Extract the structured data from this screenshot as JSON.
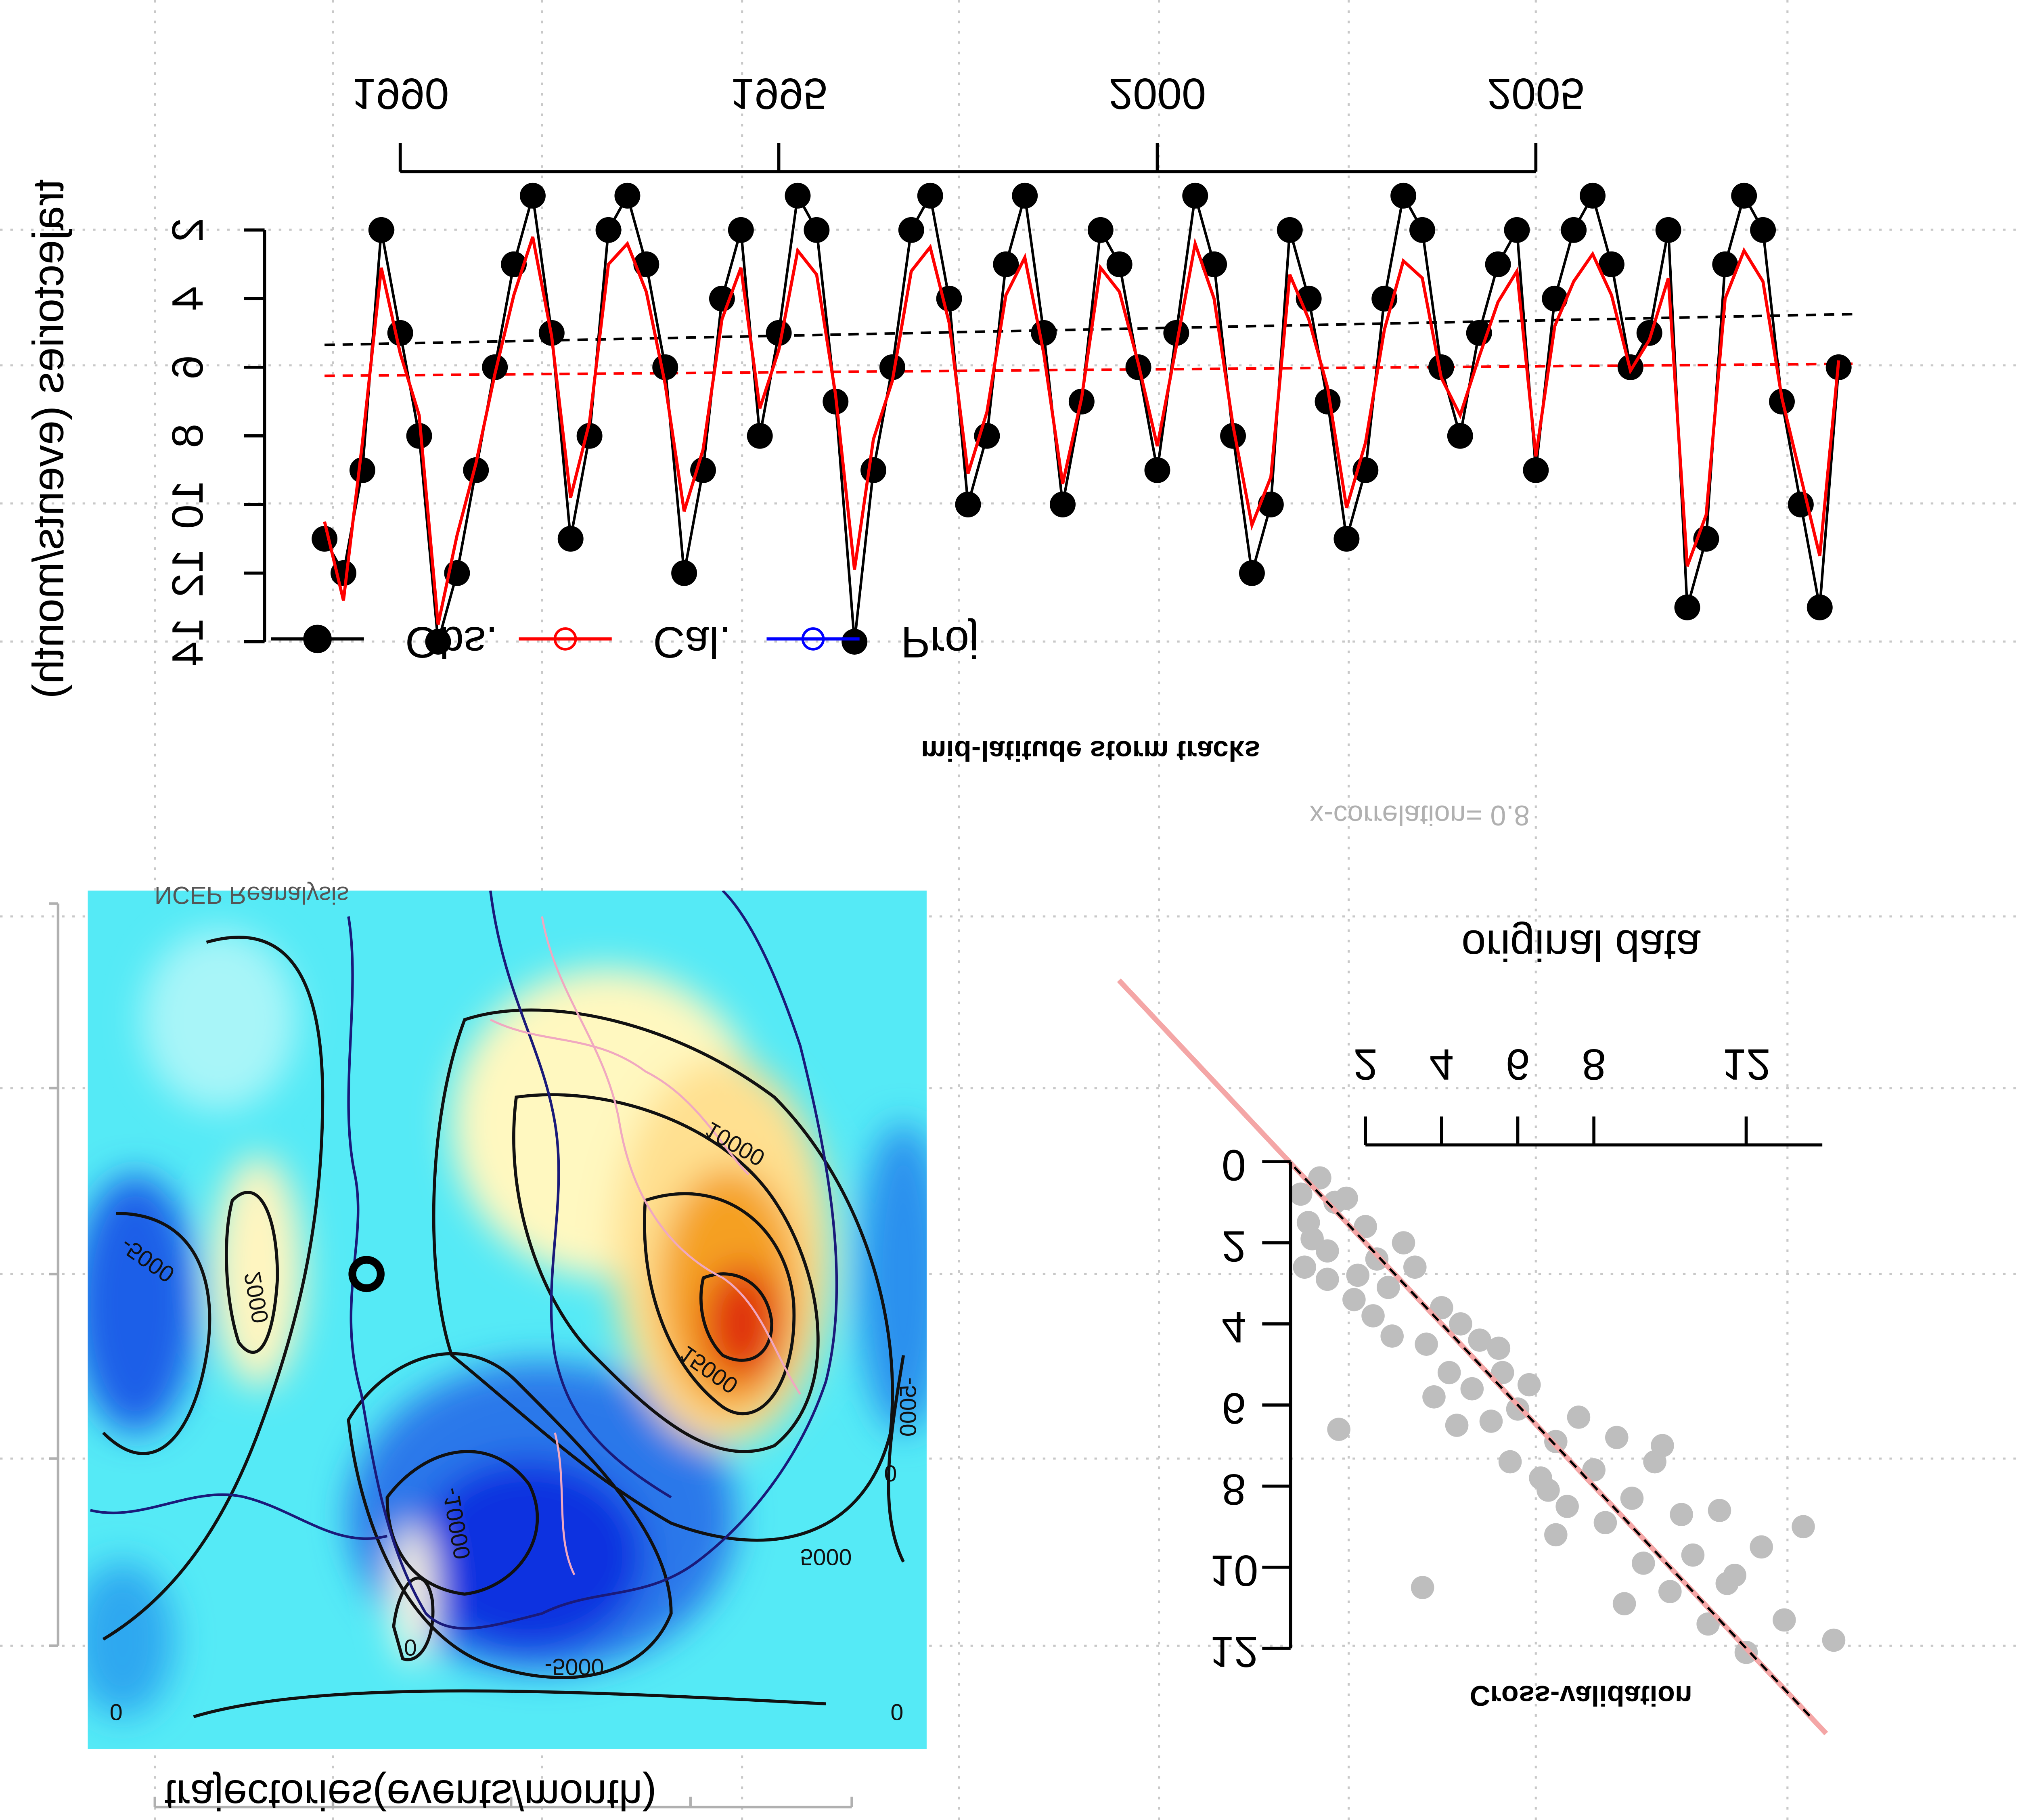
{
  "chart_data": [
    {
      "type": "line",
      "title": "mid-latitude storm tracks",
      "subtitle": "x-correlation= 0.8",
      "y_label": "trajectories (events/month)",
      "x": [
        1989.0,
        1989.25,
        1989.5,
        1989.75,
        1990.0,
        1990.25,
        1990.5,
        1990.75,
        1991.0,
        1991.25,
        1991.5,
        1991.75,
        1992.0,
        1992.25,
        1992.5,
        1992.75,
        1993.0,
        1993.25,
        1993.5,
        1993.75,
        1994.0,
        1994.25,
        1994.5,
        1994.75,
        1995.0,
        1995.25,
        1995.5,
        1995.75,
        1996.0,
        1996.25,
        1996.5,
        1996.75,
        1997.0,
        1997.25,
        1997.5,
        1997.75,
        1998.0,
        1998.25,
        1998.5,
        1998.75,
        1999.0,
        1999.25,
        1999.5,
        1999.75,
        2000.0,
        2000.25,
        2000.5,
        2000.75,
        2001.0,
        2001.25,
        2001.5,
        2001.75,
        2002.0,
        2002.25,
        2002.5,
        2002.75,
        2003.0,
        2003.25,
        2003.5,
        2003.75,
        2004.0,
        2004.25,
        2004.5,
        2004.75,
        2005.0,
        2005.25,
        2005.5,
        2005.75,
        2006.0,
        2006.25,
        2006.5,
        2006.75,
        2007.0,
        2007.25,
        2007.5,
        2007.75,
        2008.0,
        2008.25,
        2008.5,
        2008.75,
        2009.0
      ],
      "series": [
        {
          "name": "Obs.",
          "color": "#000000",
          "values": [
            11,
            12,
            9,
            2,
            5,
            8,
            14,
            12,
            9,
            6,
            3,
            1,
            5,
            11,
            8,
            2,
            1,
            3,
            6,
            12,
            9,
            4,
            2,
            8,
            5,
            1,
            2,
            7,
            14,
            9,
            6,
            2,
            1,
            4,
            10,
            8,
            3,
            1,
            5,
            10,
            7,
            2,
            3,
            6,
            9,
            5,
            1,
            3,
            8,
            12,
            10,
            2,
            4,
            7,
            11,
            9,
            4,
            1,
            2,
            6,
            8,
            5,
            3,
            2,
            9,
            4,
            2,
            1,
            3,
            6,
            5,
            2,
            13,
            11,
            3,
            1,
            2,
            7,
            10,
            13,
            6
          ]
        },
        {
          "name": "Cal.",
          "color": "#ff0000",
          "values": [
            10.5,
            12.8,
            8.2,
            3.1,
            5.6,
            7.4,
            13.5,
            10.9,
            8.8,
            6.2,
            3.9,
            2.2,
            5.1,
            9.8,
            7.6,
            3.0,
            2.4,
            3.8,
            6.5,
            10.2,
            8.4,
            4.6,
            3.1,
            7.2,
            5.5,
            2.6,
            3.3,
            6.8,
            11.9,
            8.1,
            6.4,
            3.2,
            2.5,
            4.7,
            9.1,
            7.3,
            3.9,
            2.8,
            5.6,
            9.4,
            6.9,
            3.1,
            3.8,
            5.9,
            8.3,
            5.4,
            2.4,
            4.0,
            7.7,
            10.6,
            9.2,
            3.3,
            4.6,
            6.6,
            10.1,
            8.2,
            4.9,
            2.9,
            3.4,
            6.3,
            7.4,
            5.7,
            4.1,
            3.2,
            8.6,
            4.8,
            3.5,
            2.7,
            3.9,
            6.1,
            5.2,
            3.4,
            11.8,
            10.3,
            4.0,
            2.6,
            3.5,
            6.9,
            9.2,
            11.5,
            5.8
          ]
        }
      ],
      "legend_extra": [
        {
          "name": "Proj",
          "color": "#0000ff"
        }
      ],
      "trend_x": [
        1989.0,
        2009.2
      ],
      "trends": [
        {
          "color": "#000000",
          "values": [
            5.35,
            4.45
          ]
        },
        {
          "color": "#ff0000",
          "values": [
            6.25,
            5.9
          ]
        }
      ],
      "xlim": [
        1988.6,
        2009.5
      ],
      "xticks": [
        1990,
        1995,
        2000,
        2005
      ],
      "ylim": [
        0.3,
        15.8
      ],
      "yticks": [
        2,
        4,
        6,
        8,
        10,
        12,
        14
      ],
      "legend": "topleft"
    },
    {
      "type": "scatter",
      "title": "Cross-validation",
      "x_label": "original data",
      "color": "#bebebe",
      "x": [
        0.3,
        0.5,
        0.8,
        1.0,
        1.2,
        0.4,
        0.6,
        1.5,
        1.8,
        2.0,
        2.3,
        2.6,
        3.0,
        2.2,
        1.7,
        3.3,
        3.6,
        4.0,
        4.2,
        4.5,
        3.8,
        4.8,
        5.0,
        5.3,
        5.6,
        6.0,
        5.8,
        6.3,
        6.6,
        7.0,
        7.3,
        7.6,
        7.0,
        8.0,
        8.3,
        8.6,
        9.0,
        9.3,
        9.6,
        10.0,
        10.3,
        10.6,
        11.0,
        11.3,
        11.7,
        12.0,
        12.4,
        13.0,
        14.3,
        1.3,
        2.7,
        3.5,
        4.4,
        5.5,
        6.8,
        8.8,
        9.8,
        11.5,
        13.5,
        1.0
      ],
      "values": [
        0.8,
        1.5,
        0.4,
        2.2,
        1.0,
        2.6,
        1.9,
        0.9,
        2.8,
        1.6,
        2.4,
        3.1,
        2.0,
        3.8,
        3.4,
        2.6,
        4.5,
        3.6,
        5.2,
        4.0,
        5.8,
        5.6,
        4.4,
        6.4,
        5.2,
        6.1,
        7.4,
        5.5,
        7.8,
        6.9,
        8.5,
        6.3,
        9.2,
        7.6,
        8.9,
        6.8,
        8.3,
        9.9,
        7.4,
        10.6,
        8.7,
        9.7,
        11.4,
        8.6,
        10.2,
        12.1,
        9.5,
        11.3,
        11.8,
        6.6,
        4.3,
        10.5,
        6.5,
        4.6,
        8.1,
        10.9,
        7.0,
        10.4,
        9.0,
        2.9
      ],
      "xlim": [
        0,
        14
      ],
      "xticks": [
        2,
        4,
        6,
        8,
        12
      ],
      "ylim": [
        0,
        12
      ],
      "yticks": [
        0,
        2,
        4,
        6,
        8,
        10,
        12
      ]
    },
    {
      "type": "map",
      "title": "trajectories(events/month)",
      "annotation": "NCEP Reanalysis",
      "contour_levels": [
        -5000,
        2000,
        0,
        10000,
        15000,
        5000,
        -5000,
        -10000,
        0,
        0,
        -5000,
        0
      ]
    }
  ]
}
